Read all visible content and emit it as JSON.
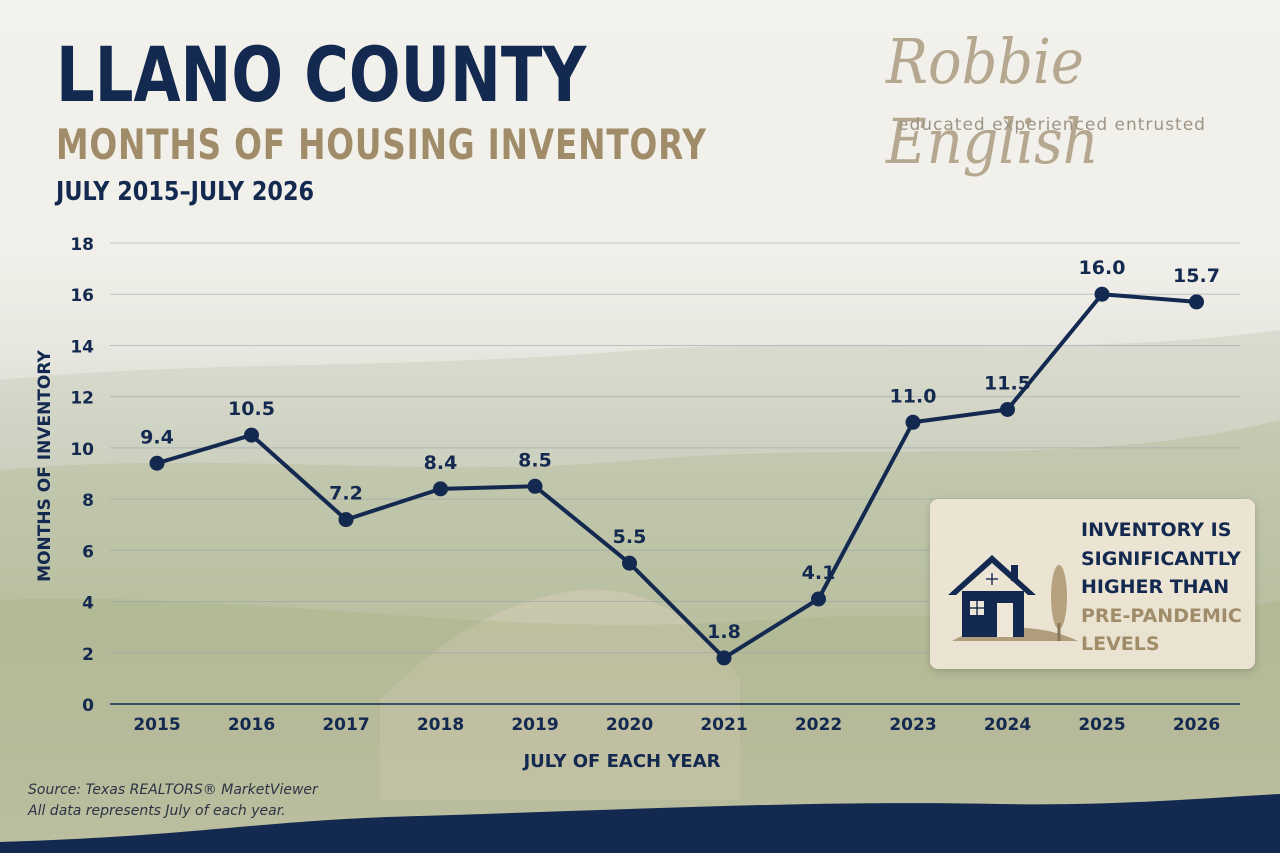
{
  "header": {
    "title": "LLANO COUNTY",
    "subtitle": "MONTHS OF HOUSING INVENTORY",
    "period": "JULY 2015–JULY 2026"
  },
  "brand": {
    "name": "Robbie English",
    "tagline": "educated  experienced  entrusted"
  },
  "chart_data": {
    "type": "line",
    "title": "",
    "xlabel": "JULY OF EACH YEAR",
    "ylabel": "MONTHS OF INVENTORY",
    "categories": [
      "2015",
      "2016",
      "2017",
      "2018",
      "2019",
      "2020",
      "2021",
      "2022",
      "2023",
      "2024",
      "2025",
      "2026"
    ],
    "series": [
      {
        "values": [
          9.4,
          10.5,
          7.2,
          8.4,
          8.5,
          5.5,
          1.8,
          4.1,
          11.0,
          11.5,
          16.0,
          15.7
        ],
        "data_labels": [
          "9.4",
          "10.5",
          "7.2",
          "8.4",
          "8.5",
          "5.5",
          "1.8",
          "4.1",
          "11.0",
          "11.5",
          "16.0",
          "15.7"
        ]
      }
    ],
    "ylim": [
      0,
      18
    ],
    "yticks": [
      "0",
      "2",
      "4",
      "6",
      "8",
      "10",
      "12",
      "14",
      "16",
      "18"
    ],
    "grid": true,
    "line_color": "#14294f"
  },
  "callout": {
    "lines": [
      "INVENTORY IS",
      "SIGNIFICANTLY",
      "HIGHER THAN"
    ],
    "accent_lines": [
      "PRE-PANDEMIC",
      "LEVELS"
    ],
    "icon": "house-with-tree-icon"
  },
  "footer": {
    "source": "Source: Texas REALTORS® MarketViewer",
    "note": "All data represents July of each year."
  },
  "colors": {
    "navy": "#14294f",
    "gold": "#a08c68",
    "panel": "#eee6d6"
  }
}
